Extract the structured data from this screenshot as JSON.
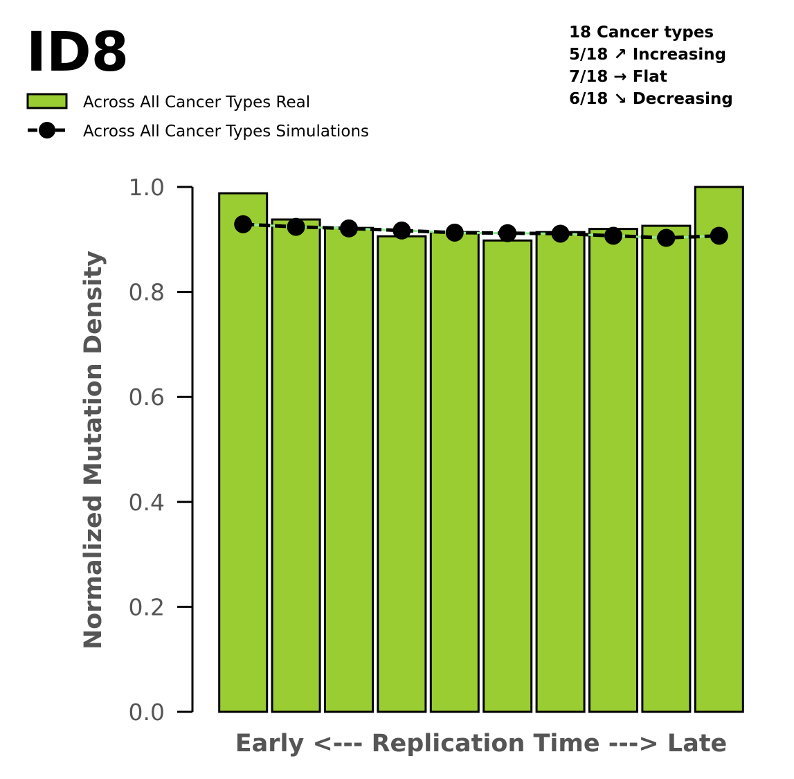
{
  "chart_data": {
    "type": "bar",
    "title": "ID8",
    "xlabel": "Early <--- Replication Time ---> Late",
    "ylabel": "Normalized Mutation Density",
    "ylim": [
      0,
      1.0
    ],
    "yticks": [
      "0.0",
      "0.2",
      "0.4",
      "0.6",
      "0.8",
      "1.0"
    ],
    "grid": false,
    "legend_placement": "top-left",
    "annotation_lines": [
      "18 Cancer types",
      "5/18 ↗ Increasing",
      "7/18 → Flat",
      "6/18 ↘ Decreasing"
    ],
    "series": [
      {
        "name": "Across All Cancer Types Real",
        "kind": "bar",
        "color": "#9ACD32",
        "values": [
          0.988,
          0.938,
          0.922,
          0.906,
          0.914,
          0.898,
          0.914,
          0.92,
          0.926,
          1.0
        ]
      },
      {
        "name": "Across All Cancer Types Simulations",
        "kind": "line",
        "color": "#000000",
        "values": [
          0.929,
          0.924,
          0.921,
          0.917,
          0.913,
          0.912,
          0.911,
          0.907,
          0.903,
          0.907
        ]
      }
    ],
    "band_color": "#90EE90",
    "categories_count": 10
  }
}
